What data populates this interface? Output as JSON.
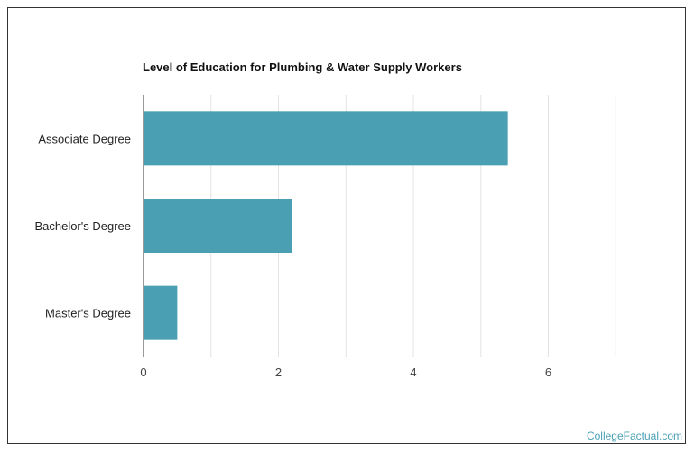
{
  "chart_data": {
    "type": "bar",
    "orientation": "horizontal",
    "title": "Level of Education for Plumbing & Water Supply Workers",
    "xlabel": "",
    "ylabel": "",
    "categories": [
      "Associate Degree",
      "Bachelor's Degree",
      "Master's Degree"
    ],
    "values": [
      5.4,
      2.2,
      0.5
    ],
    "xlim": [
      0,
      8
    ],
    "xticks": [
      0,
      2,
      4,
      6
    ],
    "grid": true,
    "bar_color": "#4a9fb2"
  },
  "footer": {
    "watermark": "CollegeFactual.com"
  }
}
